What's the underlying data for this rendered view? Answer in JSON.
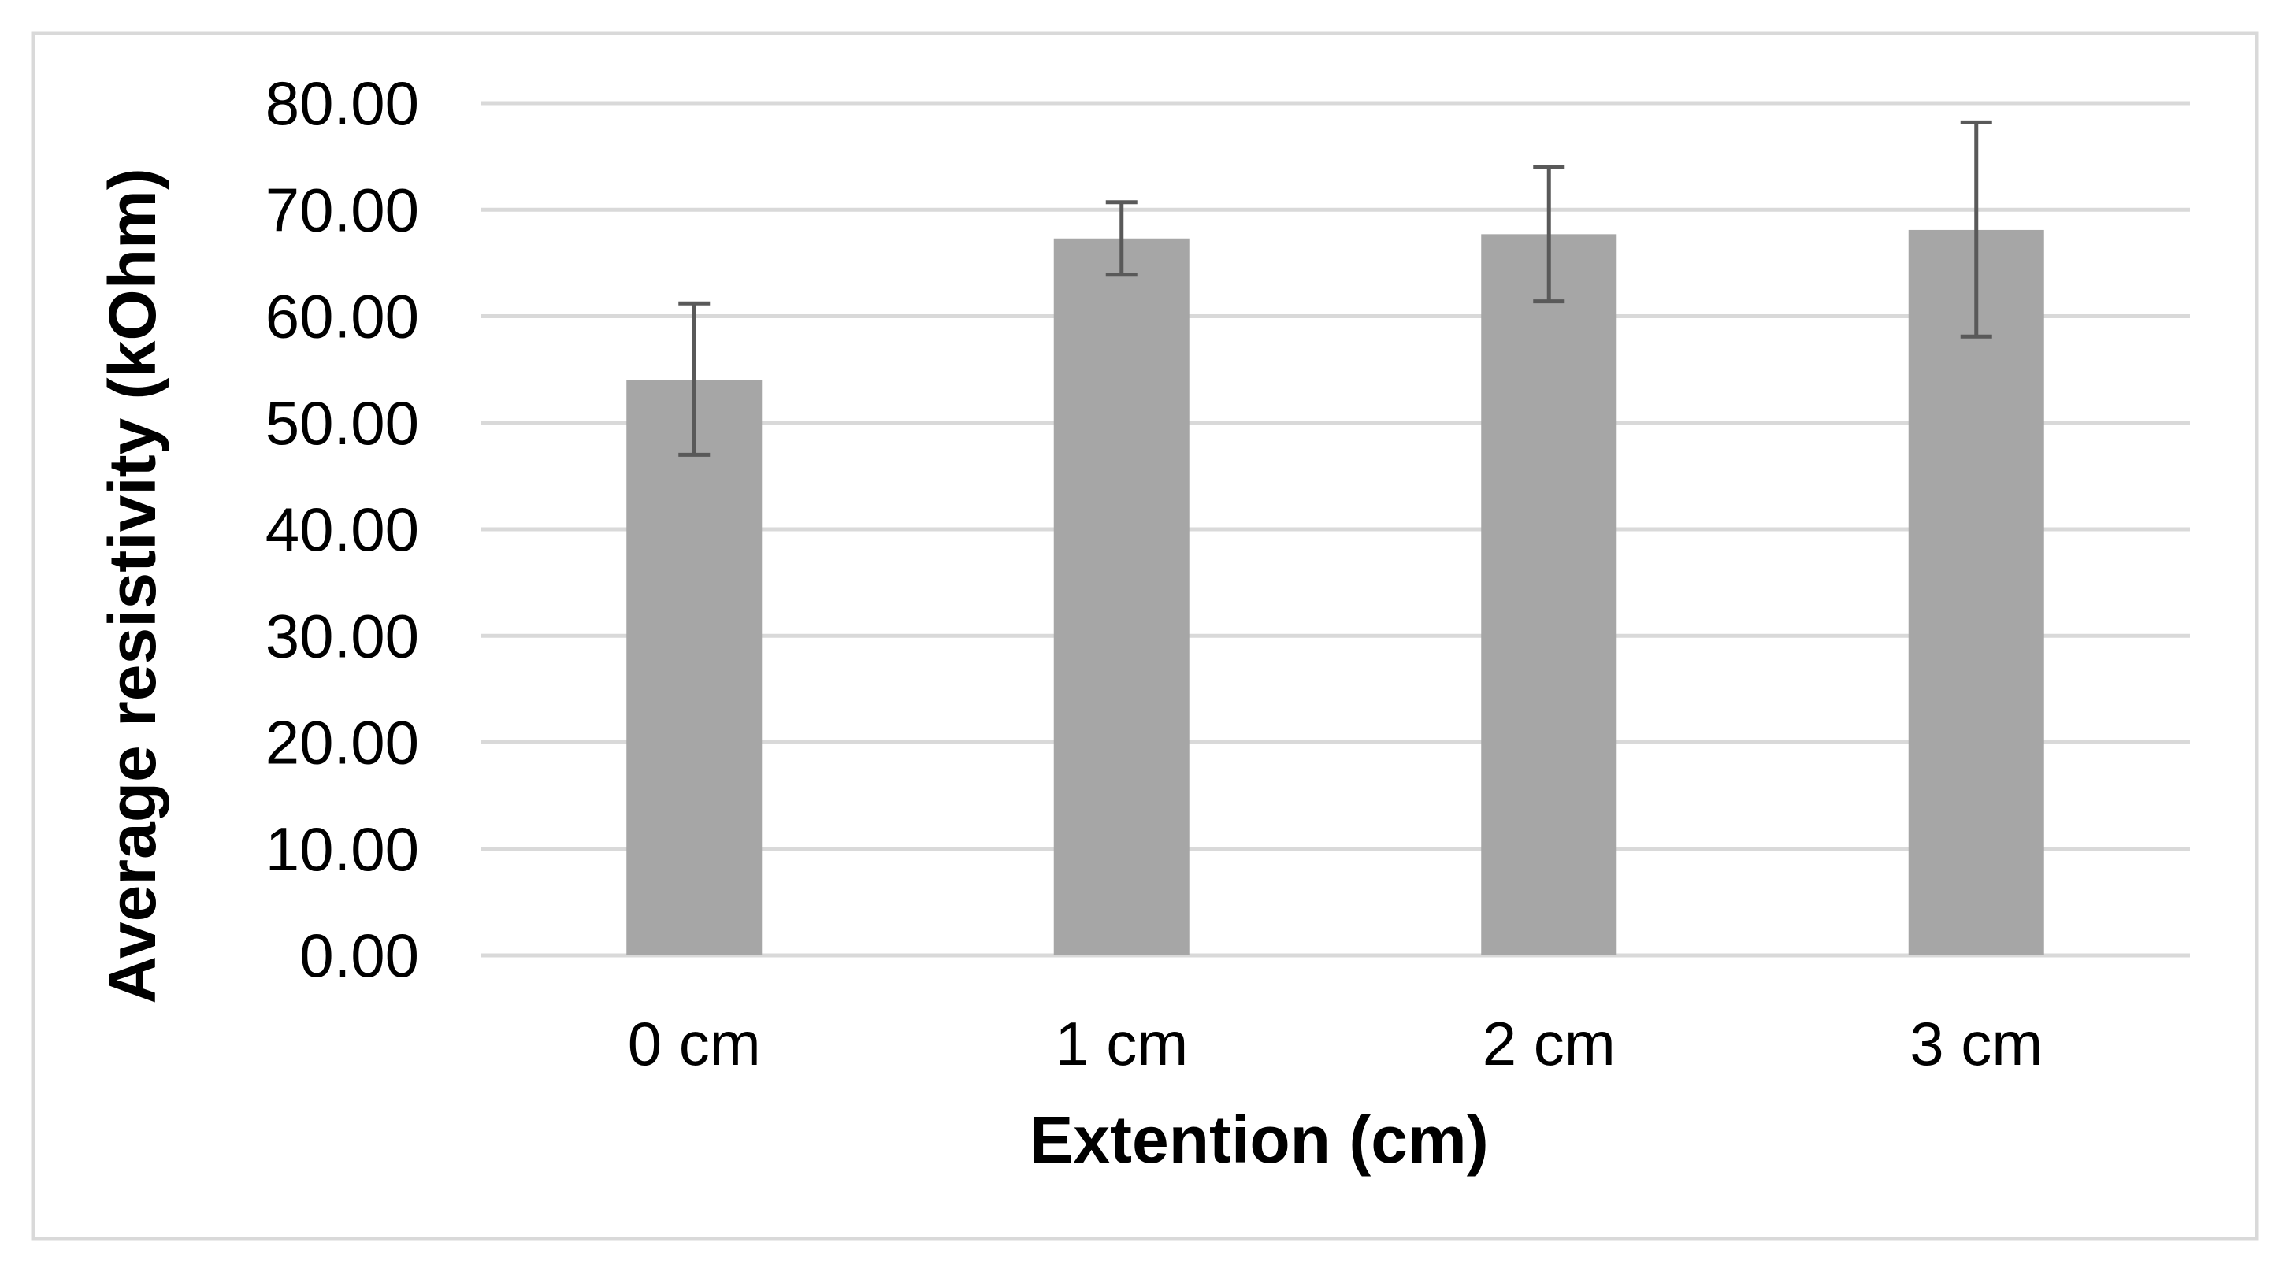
{
  "chart_data": {
    "type": "bar",
    "title": "",
    "xlabel": "Extention (cm)",
    "ylabel": "Average resistivity (kOhm)",
    "categories": [
      "0 cm",
      "1 cm",
      "2 cm",
      "3 cm"
    ],
    "values": [
      54.0,
      67.3,
      67.7,
      68.1
    ],
    "error_low": [
      47.0,
      63.9,
      61.4,
      58.1
    ],
    "error_high": [
      61.2,
      70.7,
      74.0,
      78.2
    ],
    "ylim": [
      0,
      80
    ],
    "yticks": [
      0,
      10,
      20,
      30,
      40,
      50,
      60,
      70,
      80
    ],
    "ytick_labels": [
      "0.00",
      "10.00",
      "20.00",
      "30.00",
      "40.00",
      "50.00",
      "60.00",
      "70.00",
      "80.00"
    ],
    "grid": true,
    "legend": "none",
    "colors": {
      "bar": "#a6a6a6",
      "error_bar": "#595959",
      "grid": "#d9d9d9",
      "frame": "#d9d9d9"
    }
  }
}
